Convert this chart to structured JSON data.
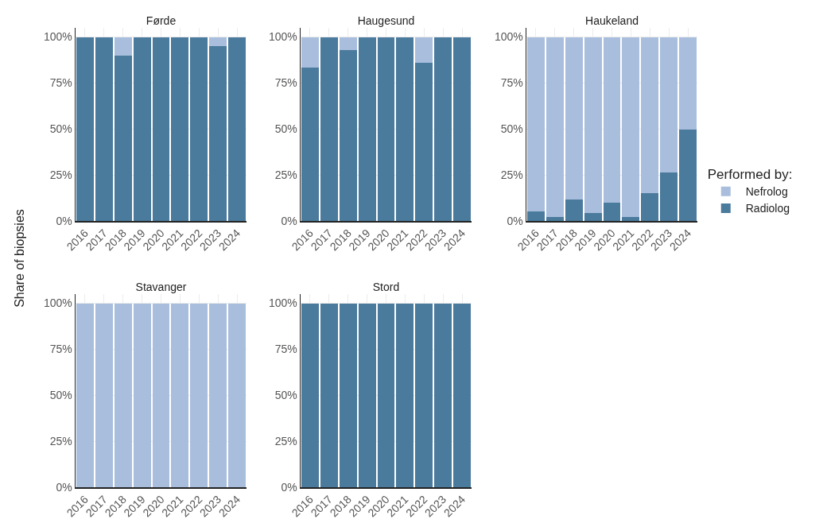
{
  "chart_data": [
    {
      "type": "bar",
      "title": "Førde",
      "ylabel": "Share of biopsies",
      "categories": [
        "2016",
        "2017",
        "2018",
        "2019",
        "2020",
        "2021",
        "2022",
        "2023",
        "2024"
      ],
      "stacked": true,
      "grid": true,
      "ylim": [
        0,
        105
      ],
      "yticks": [
        {
          "value": 0,
          "label": "0%"
        },
        {
          "value": 25,
          "label": "25%"
        },
        {
          "value": 50,
          "label": "50%"
        },
        {
          "value": 75,
          "label": "75%"
        },
        {
          "value": 100,
          "label": "100%"
        }
      ],
      "series": [
        {
          "color": "#4a7a9c",
          "values": [
            100,
            100,
            90,
            100,
            100,
            100,
            100,
            95,
            100
          ]
        },
        {
          "color": "#a9bedd",
          "values": [
            0,
            0,
            10,
            0,
            0,
            0,
            0,
            5,
            0
          ]
        }
      ]
    },
    {
      "type": "bar",
      "title": "Haugesund",
      "categories": [
        "2016",
        "2017",
        "2018",
        "2019",
        "2020",
        "2021",
        "2022",
        "2023",
        "2024"
      ],
      "stacked": true,
      "grid": true,
      "ylim": [
        0,
        105
      ],
      "yticks": [
        {
          "value": 0,
          "label": "0%"
        },
        {
          "value": 25,
          "label": "25%"
        },
        {
          "value": 50,
          "label": "50%"
        },
        {
          "value": 75,
          "label": "75%"
        },
        {
          "value": 100,
          "label": "100%"
        }
      ],
      "series": [
        {
          "color": "#4a7a9c",
          "values": [
            83.5,
            100,
            93,
            100,
            100,
            100,
            86,
            100,
            100
          ]
        },
        {
          "color": "#a9bedd",
          "values": [
            16.5,
            0,
            7,
            0,
            0,
            0,
            14,
            0,
            0
          ]
        }
      ]
    },
    {
      "type": "bar",
      "title": "Haukeland",
      "legend_title": "Performed by:",
      "categories": [
        "2016",
        "2017",
        "2018",
        "2019",
        "2020",
        "2021",
        "2022",
        "2023",
        "2024"
      ],
      "stacked": true,
      "grid": true,
      "legend": "right",
      "ylim": [
        0,
        105
      ],
      "yticks": [
        {
          "value": 0,
          "label": "0%"
        },
        {
          "value": 25,
          "label": "25%"
        },
        {
          "value": 50,
          "label": "50%"
        },
        {
          "value": 75,
          "label": "75%"
        },
        {
          "value": 100,
          "label": "100%"
        }
      ],
      "series": [
        {
          "name": "Radiolog",
          "color": "#4a7a9c",
          "values": [
            5,
            2,
            11.5,
            4.5,
            10,
            2,
            15,
            26.5,
            49.5
          ]
        },
        {
          "name": "Nefrolog",
          "color": "#a9bedd",
          "values": [
            95,
            98,
            88.5,
            95.5,
            90,
            98,
            85,
            73.5,
            50.5
          ]
        }
      ]
    },
    {
      "type": "bar",
      "title": "Stavanger",
      "categories": [
        "2016",
        "2017",
        "2018",
        "2019",
        "2020",
        "2021",
        "2022",
        "2023",
        "2024"
      ],
      "stacked": true,
      "grid": true,
      "ylim": [
        0,
        105
      ],
      "yticks": [
        {
          "value": 0,
          "label": "0%"
        },
        {
          "value": 25,
          "label": "25%"
        },
        {
          "value": 50,
          "label": "50%"
        },
        {
          "value": 75,
          "label": "75%"
        },
        {
          "value": 100,
          "label": "100%"
        }
      ],
      "series": [
        {
          "color": "#4a7a9c",
          "values": [
            0,
            0,
            0,
            0,
            0,
            0,
            0,
            0,
            0
          ]
        },
        {
          "color": "#a9bedd",
          "values": [
            100,
            100,
            100,
            100,
            100,
            100,
            100,
            100,
            100
          ]
        }
      ]
    },
    {
      "type": "bar",
      "title": "Stord",
      "categories": [
        "2016",
        "2017",
        "2018",
        "2019",
        "2020",
        "2021",
        "2022",
        "2023",
        "2024"
      ],
      "stacked": true,
      "grid": true,
      "ylim": [
        0,
        105
      ],
      "yticks": [
        {
          "value": 0,
          "label": "0%"
        },
        {
          "value": 25,
          "label": "25%"
        },
        {
          "value": 50,
          "label": "50%"
        },
        {
          "value": 75,
          "label": "75%"
        },
        {
          "value": 100,
          "label": "100%"
        }
      ],
      "series": [
        {
          "color": "#4a7a9c",
          "values": [
            100,
            100,
            100,
            100,
            100,
            100,
            100,
            100,
            100
          ]
        },
        {
          "color": "#a9bedd",
          "values": [
            0,
            0,
            0,
            0,
            0,
            0,
            0,
            0,
            0
          ]
        }
      ]
    }
  ]
}
